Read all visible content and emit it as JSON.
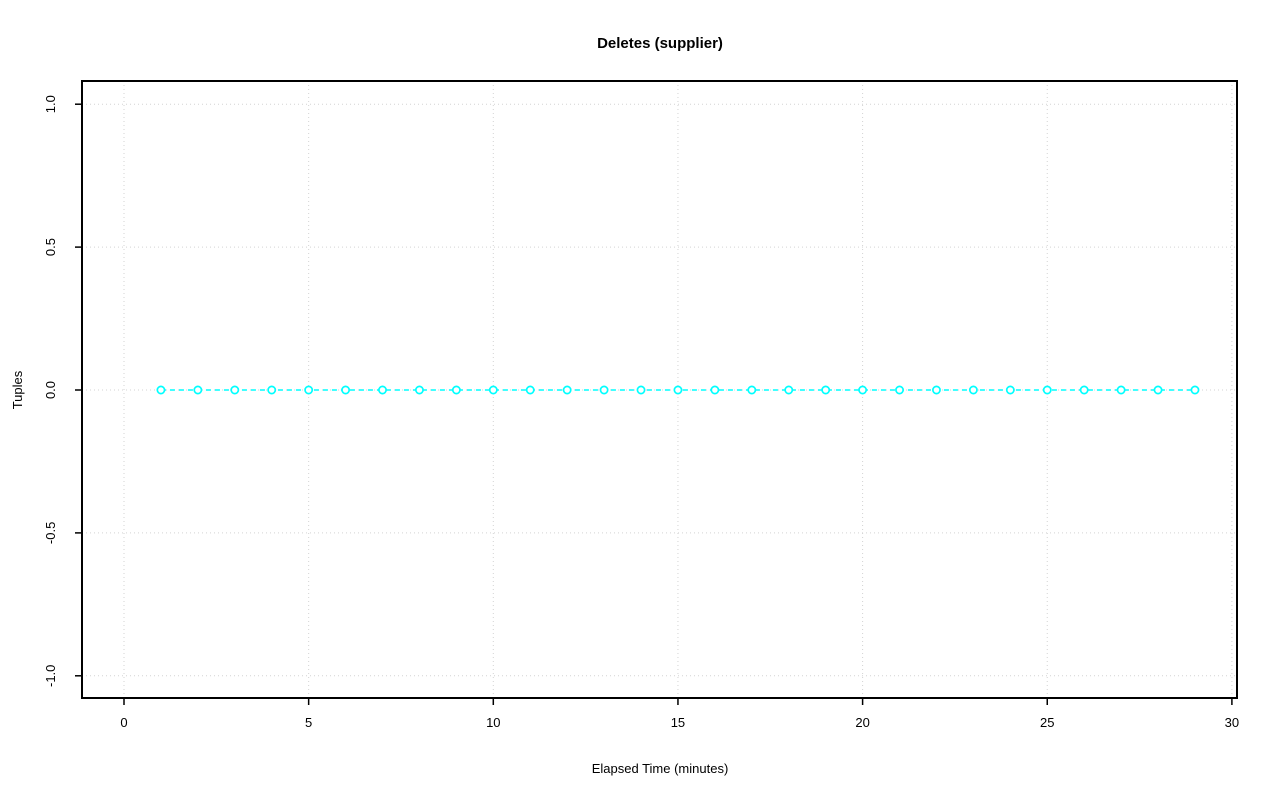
{
  "window": {
    "background": "#ffffff"
  },
  "chart_data": {
    "type": "scatter",
    "title": "Deletes (supplier)",
    "xlabel": "Elapsed Time (minutes)",
    "ylabel": "Tuples",
    "x": [
      1,
      2,
      3,
      4,
      5,
      6,
      7,
      8,
      9,
      10,
      11,
      12,
      13,
      14,
      15,
      16,
      17,
      18,
      19,
      20,
      21,
      22,
      23,
      24,
      25,
      26,
      27,
      28,
      29
    ],
    "y": [
      0,
      0,
      0,
      0,
      0,
      0,
      0,
      0,
      0,
      0,
      0,
      0,
      0,
      0,
      0,
      0,
      0,
      0,
      0,
      0,
      0,
      0,
      0,
      0,
      0,
      0,
      0,
      0,
      0
    ],
    "xlim": [
      0,
      30
    ],
    "ylim": [
      -1.0,
      1.0
    ],
    "x_ticks": [
      0,
      5,
      10,
      15,
      20,
      25,
      30
    ],
    "x_tick_labels": [
      "0",
      "5",
      "10",
      "15",
      "20",
      "25",
      "30"
    ],
    "y_ticks": [
      -1.0,
      -0.5,
      0.0,
      0.5,
      1.0
    ],
    "y_tick_labels": [
      "-1.0",
      "-0.5",
      "0.0",
      "0.5",
      "1.0"
    ],
    "grid": true,
    "legend": "none",
    "marker": "open-circle",
    "line_style": "dashed",
    "series_color": "#00ffff",
    "grid_color": "#d3d3d3",
    "axis_color": "#000000",
    "text_color": "#000000"
  }
}
